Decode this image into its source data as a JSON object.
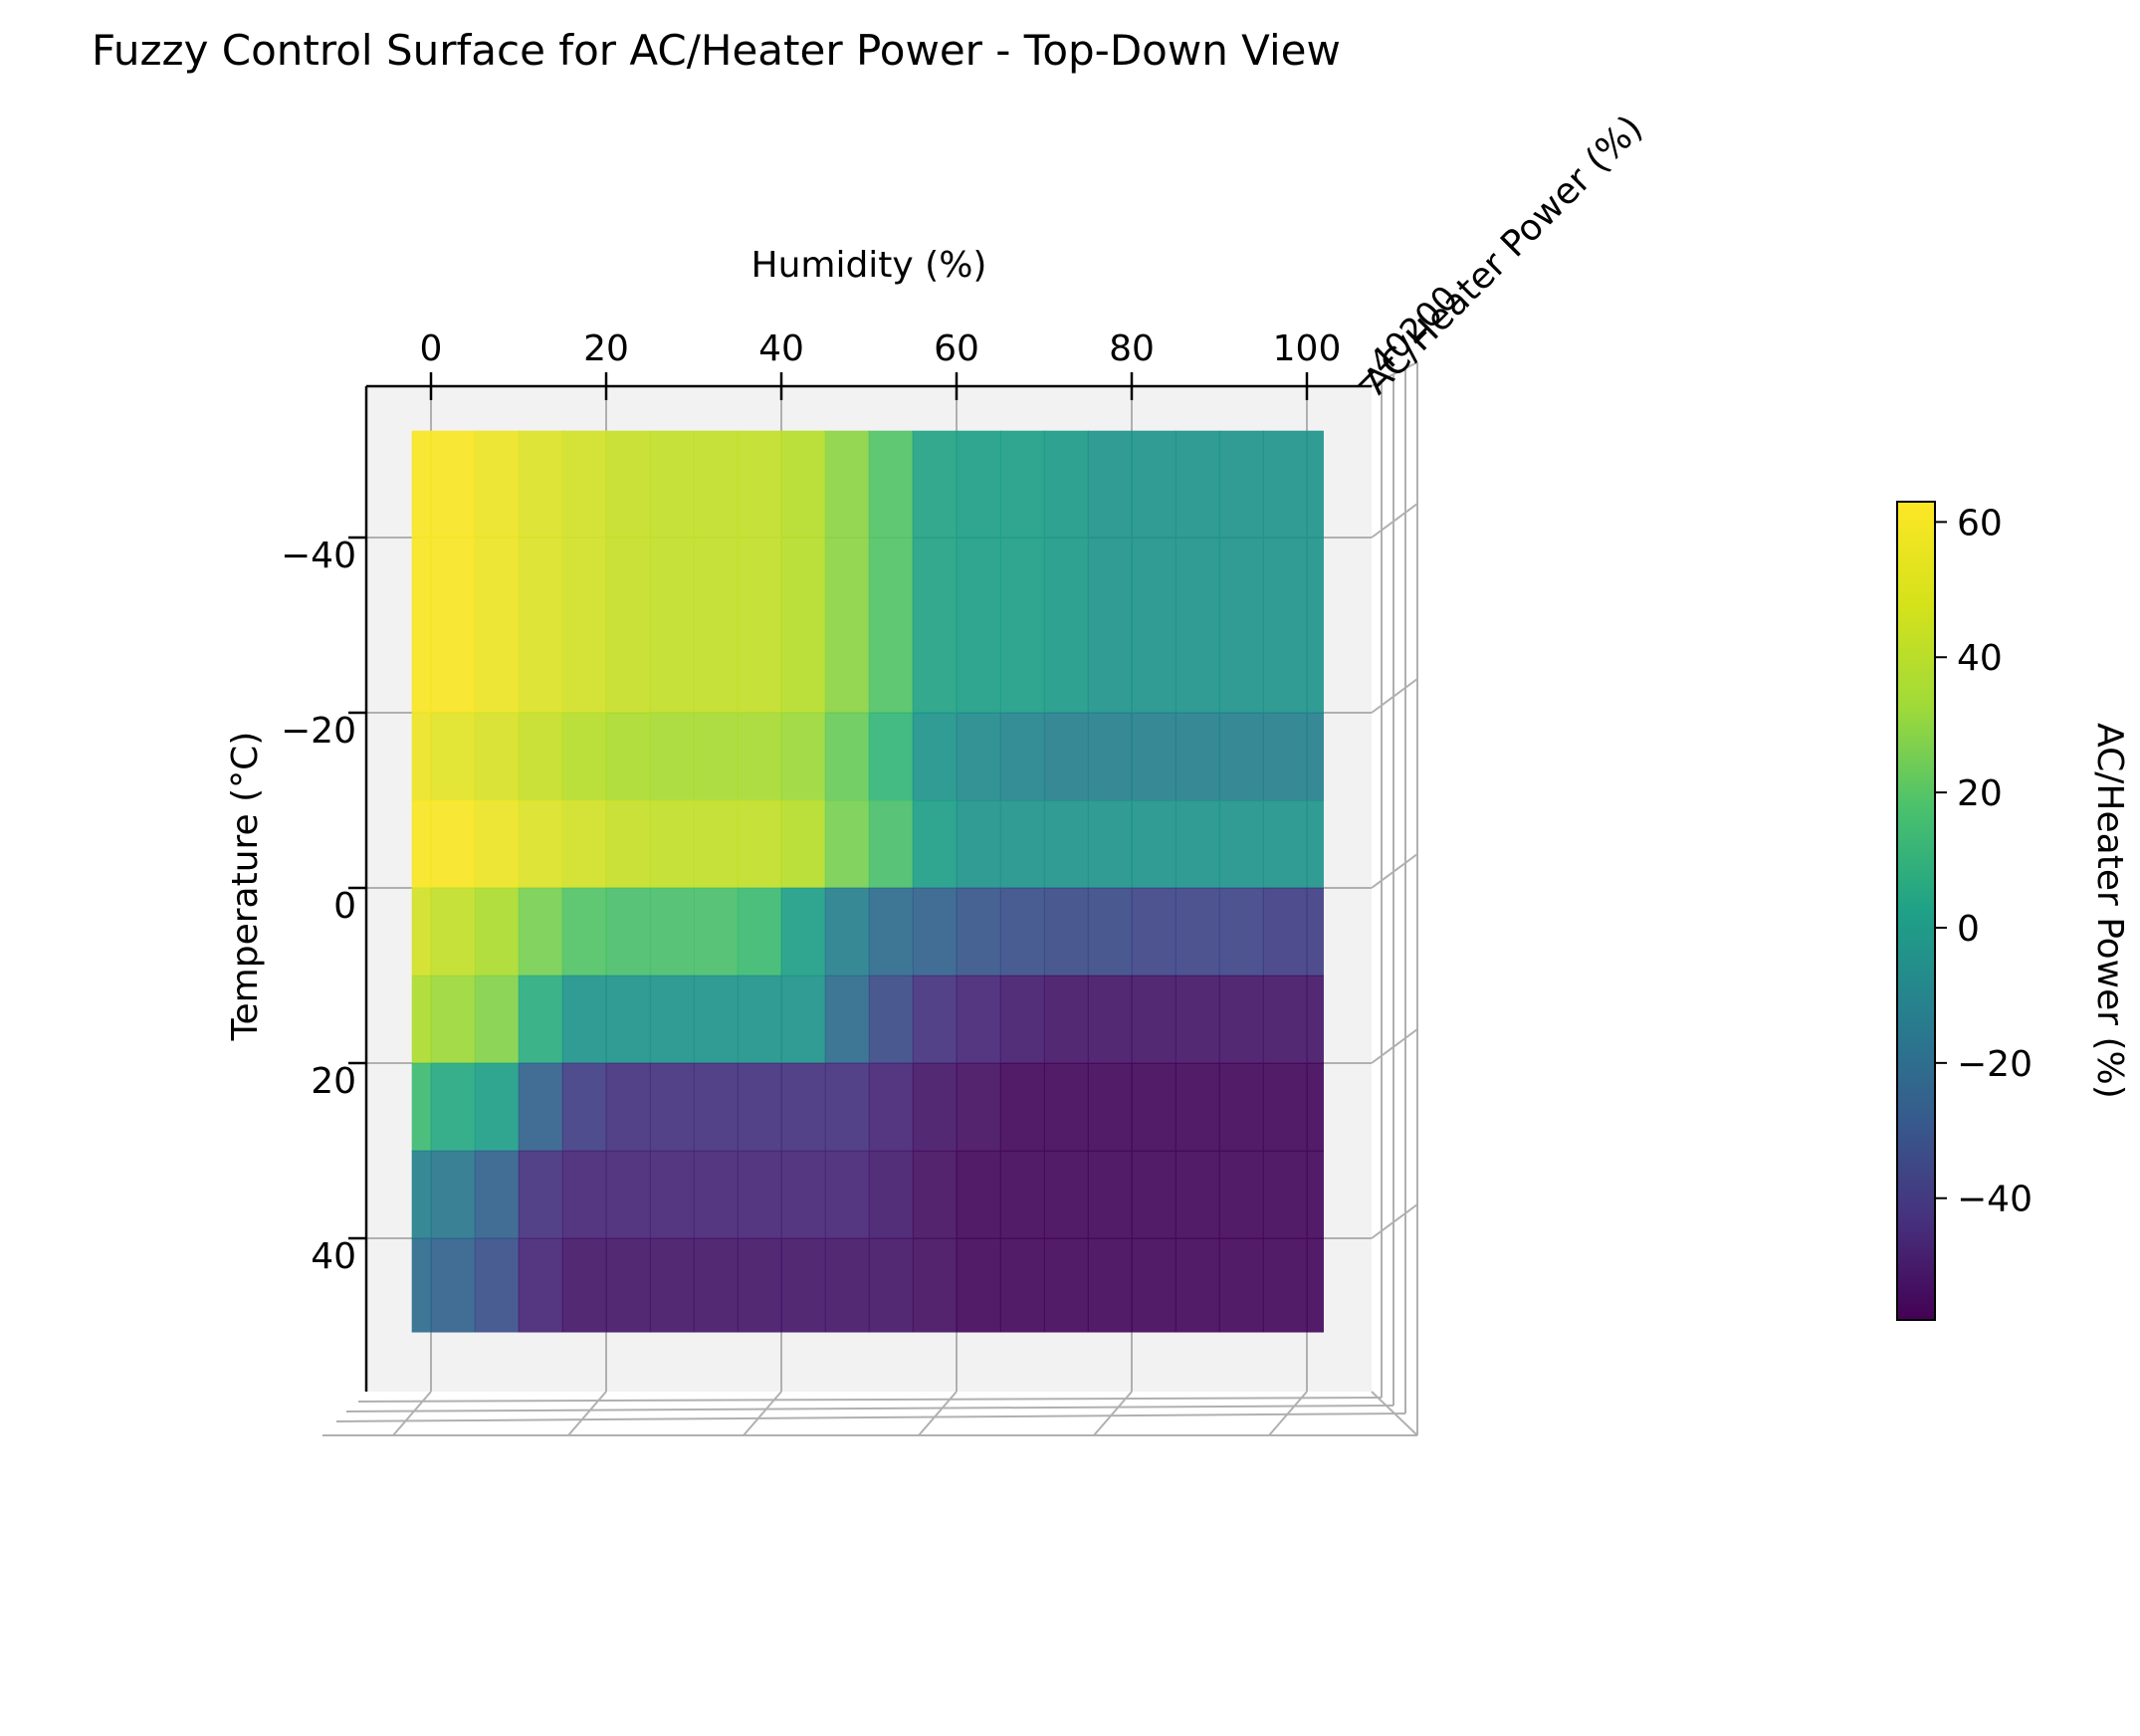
{
  "chart_data": {
    "type": "heatmap",
    "title": "Fuzzy Control Surface for AC/Heater Power - Top-Down View",
    "xlabel": "Humidity (%)",
    "ylabel": "Temperature (°C)",
    "zlabel": "AC/Heater Power (%)",
    "colorbar_label": "AC/Heater Power (%)",
    "colormap": "viridis",
    "x_ticks": [
      0,
      20,
      40,
      60,
      80,
      100
    ],
    "y_ticks": [
      -40,
      -20,
      0,
      20,
      40
    ],
    "y_tick_labels": [
      "−40",
      "−20",
      "0",
      "20",
      "40"
    ],
    "colorbar_ticks": [
      60,
      40,
      20,
      0,
      -20,
      -40
    ],
    "colorbar_tick_labels": [
      "60",
      "40",
      "20",
      "0",
      "−20",
      "−40"
    ],
    "z_tick_overlap_text": "AC/Heater Power (%)",
    "z_tick_labels_garbled": "−40200",
    "xlim": [
      -5,
      105
    ],
    "ylim": [
      -55,
      52
    ],
    "zlim": [
      -58,
      63
    ],
    "x": [
      -5,
      0,
      5,
      10,
      15,
      20,
      25,
      30,
      35,
      40,
      45,
      50,
      55,
      60,
      65,
      70,
      75,
      80,
      85,
      90,
      95,
      100,
      105
    ],
    "y": [
      -55,
      -40,
      -20,
      -10,
      0,
      10,
      20,
      30,
      40,
      52
    ],
    "z": [
      [
        62,
        62,
        60,
        57,
        55,
        53,
        52,
        52,
        52,
        50,
        42,
        30,
        12,
        10,
        10,
        8,
        5,
        5,
        5,
        5,
        5,
        5
      ],
      [
        62,
        62,
        60,
        57,
        55,
        53,
        52,
        52,
        52,
        50,
        42,
        30,
        12,
        10,
        10,
        8,
        5,
        5,
        5,
        5,
        5,
        5
      ],
      [
        60,
        58,
        56,
        53,
        50,
        48,
        47,
        47,
        47,
        45,
        35,
        22,
        5,
        0,
        -3,
        -5,
        -5,
        -5,
        -5,
        -5,
        -5,
        -5
      ],
      [
        62,
        62,
        60,
        57,
        55,
        53,
        52,
        52,
        52,
        50,
        38,
        28,
        10,
        5,
        5,
        5,
        5,
        5,
        5,
        5,
        5,
        5
      ],
      [
        55,
        52,
        48,
        38,
        30,
        28,
        28,
        28,
        25,
        10,
        -5,
        -15,
        -20,
        -25,
        -28,
        -30,
        -30,
        -32,
        -32,
        -32,
        -35,
        -35
      ],
      [
        48,
        45,
        40,
        18,
        5,
        5,
        5,
        5,
        5,
        5,
        -15,
        -30,
        -40,
        -45,
        -48,
        -50,
        -50,
        -50,
        -50,
        -50,
        -50,
        -50
      ],
      [
        25,
        15,
        10,
        -20,
        -35,
        -40,
        -40,
        -40,
        -40,
        -40,
        -40,
        -45,
        -50,
        -52,
        -55,
        -55,
        -55,
        -55,
        -55,
        -55,
        -55,
        -55
      ],
      [
        -5,
        -10,
        -20,
        -40,
        -45,
        -45,
        -45,
        -45,
        -45,
        -45,
        -45,
        -48,
        -52,
        -55,
        -55,
        -55,
        -55,
        -55,
        -55,
        -55,
        -55,
        -55
      ],
      [
        -15,
        -20,
        -28,
        -45,
        -50,
        -50,
        -50,
        -50,
        -50,
        -50,
        -50,
        -50,
        -52,
        -55,
        -55,
        -55,
        -55,
        -55,
        -55,
        -55,
        -55,
        -55
      ]
    ]
  }
}
